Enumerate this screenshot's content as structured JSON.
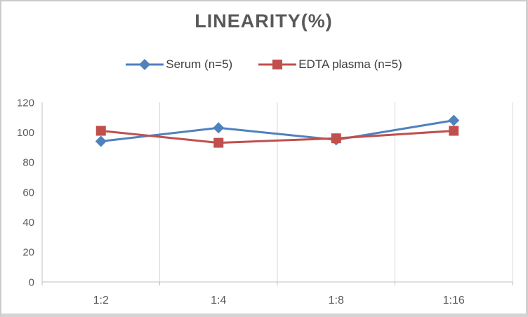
{
  "chart_data": {
    "type": "line",
    "title": "LINEARITY(%)",
    "categories": [
      "1:2",
      "1:4",
      "1:8",
      "1:16"
    ],
    "series": [
      {
        "name": "Serum (n=5)",
        "color": "#4F81BD",
        "marker": "diamond",
        "values": [
          94,
          103,
          95,
          108
        ]
      },
      {
        "name": "EDTA plasma (n=5)",
        "color": "#C0504D",
        "marker": "square",
        "values": [
          101,
          93,
          96,
          101
        ]
      }
    ],
    "ylim": [
      0,
      120
    ],
    "ytick_step": 20,
    "yticks": [
      "0",
      "20",
      "40",
      "60",
      "80",
      "100",
      "120"
    ],
    "grid": "vertical-only",
    "legend_position": "top",
    "colors": {
      "axis_line": "#c0c0c0",
      "gridline": "#d9d9d9",
      "tick_label": "#595959",
      "title": "#595959",
      "legend_text": "#3f3f3f"
    }
  }
}
